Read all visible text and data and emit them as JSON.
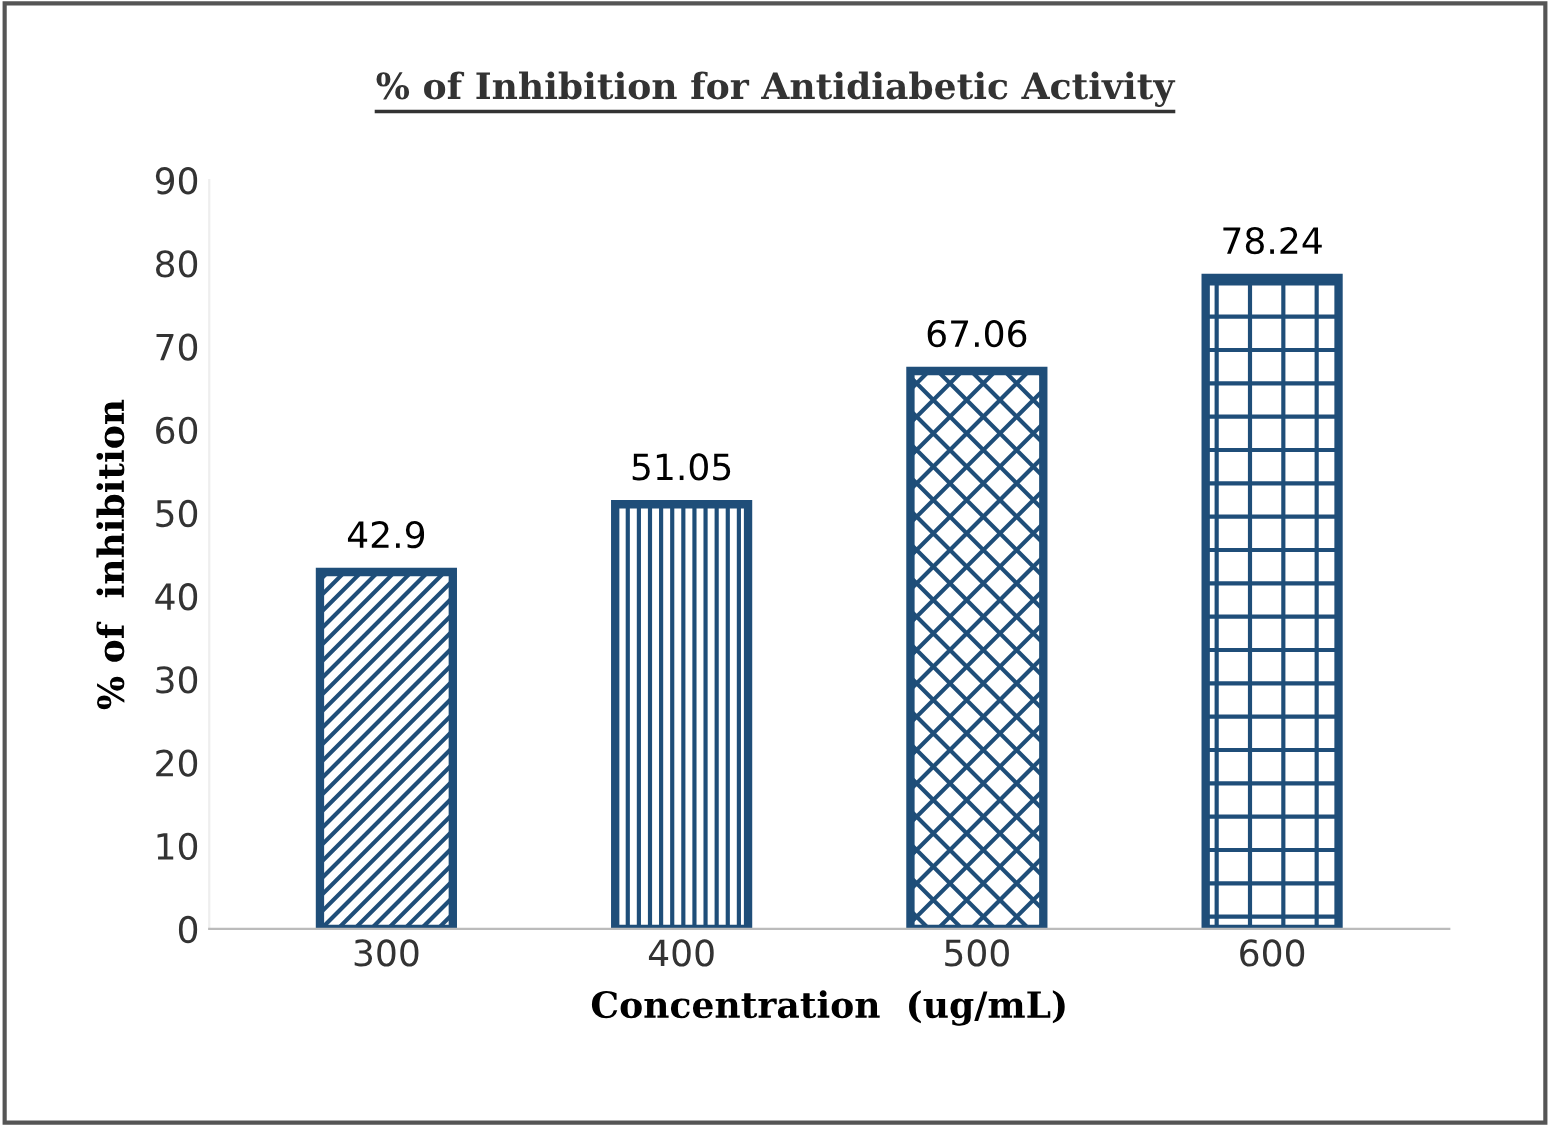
{
  "chart_data": {
    "type": "bar",
    "title": "% of Inhibition for Antidiabetic Activity",
    "xlabel": "Concentration  (ug/mL)",
    "ylabel": "% of  inhibition",
    "categories": [
      "300",
      "400",
      "500",
      "600"
    ],
    "values": [
      42.9,
      51.05,
      67.06,
      78.24
    ],
    "colors": [
      "#1f4e79",
      "#1f4e79",
      "#1f4e79",
      "#1f4e79"
    ],
    "ylim": [
      0,
      90
    ],
    "yticks": [
      0,
      10,
      20,
      30,
      40,
      50,
      60,
      70,
      80,
      90
    ],
    "data_labels": true,
    "grid": false
  }
}
